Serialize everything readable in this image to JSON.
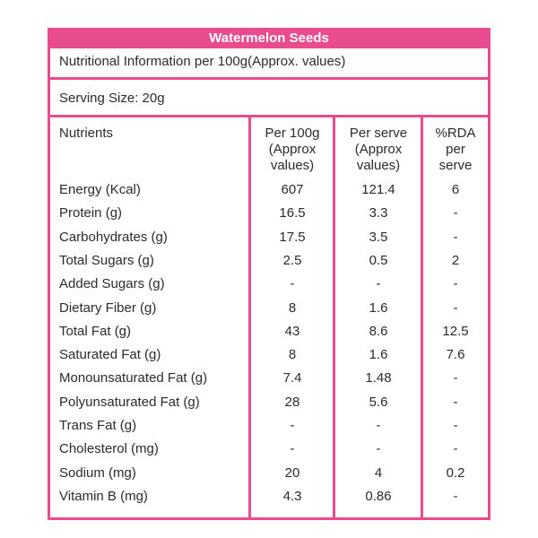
{
  "table": {
    "title": "Watermelon Seeds",
    "info": "Nutritional Information per 100g(Approx. values)",
    "serving": "Serving Size:  20g",
    "headers": {
      "nutrients": "Nutrients",
      "per100": [
        "Per 100g",
        "(Approx",
        "values)"
      ],
      "perServe": [
        "Per serve",
        "(Approx",
        "values)"
      ],
      "rda": [
        "%RDA",
        "per",
        "serve"
      ]
    },
    "rows": [
      {
        "name": "Energy (Kcal)",
        "per100": "607",
        "perServe": "121.4",
        "rda": "6"
      },
      {
        "name": "Protein (g)",
        "per100": "16.5",
        "perServe": "3.3",
        "rda": "-"
      },
      {
        "name": "Carbohydrates (g)",
        "per100": "17.5",
        "perServe": "3.5",
        "rda": "-"
      },
      {
        "name": "Total Sugars (g)",
        "per100": "2.5",
        "perServe": "0.5",
        "rda": "2"
      },
      {
        "name": "Added Sugars (g)",
        "per100": "-",
        "perServe": "-",
        "rda": "-"
      },
      {
        "name": "Dietary Fiber (g)",
        "per100": "8",
        "perServe": "1.6",
        "rda": "-"
      },
      {
        "name": "Total Fat (g)",
        "per100": "43",
        "perServe": "8.6",
        "rda": "12.5"
      },
      {
        "name": "Saturated Fat (g)",
        "per100": "8",
        "perServe": "1.6",
        "rda": "7.6"
      },
      {
        "name": "Monounsaturated Fat (g)",
        "per100": "7.4",
        "perServe": "1.48",
        "rda": "-"
      },
      {
        "name": "Polyunsaturated Fat (g)",
        "per100": "28",
        "perServe": "5.6",
        "rda": "-"
      },
      {
        "name": "Trans Fat (g)",
        "per100": "-",
        "perServe": "-",
        "rda": "-"
      },
      {
        "name": "Cholesterol (mg)",
        "per100": "-",
        "perServe": "-",
        "rda": "-"
      },
      {
        "name": "Sodium (mg)",
        "per100": "20",
        "perServe": "4",
        "rda": "0.2"
      },
      {
        "name": "Vitamin B (mg)",
        "per100": "4.3",
        "perServe": "0.86",
        "rda": "-"
      }
    ]
  },
  "colors": {
    "accent": "#e94b8f",
    "text": "#2b2b2b",
    "background": "#ffffff"
  }
}
